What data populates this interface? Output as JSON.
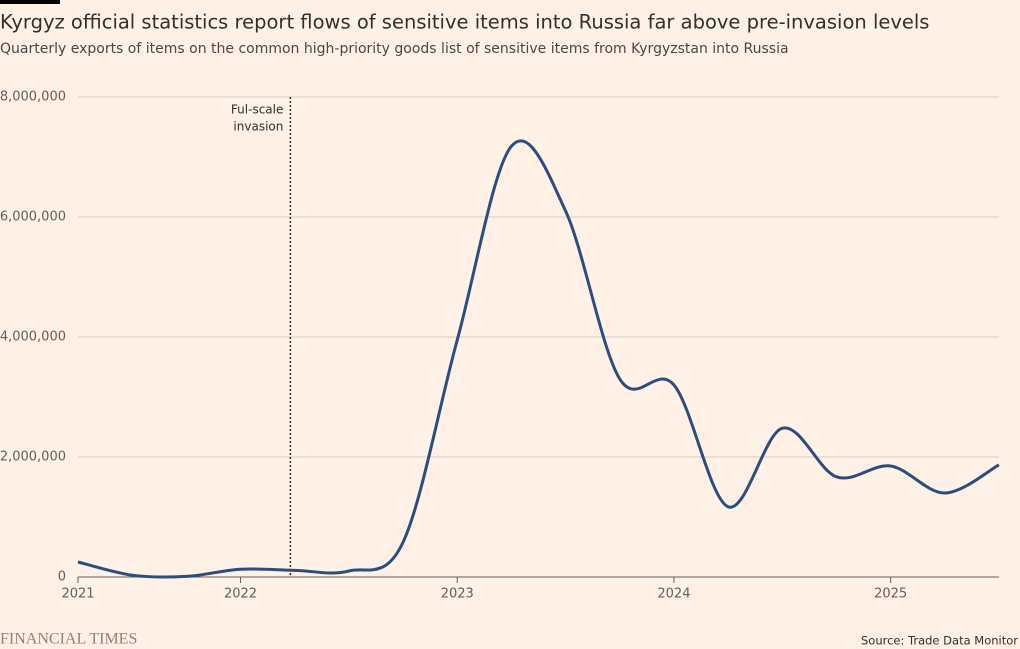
{
  "chart_data": {
    "type": "line",
    "title": "Kyrgyz official statistics report flows of sensitive items into Russia far above pre-invasion levels",
    "subtitle": "Quarterly exports of items on the common high-priority goods list of sensitive items from Kyrgyzstan into Russia",
    "x": [
      2021.25,
      2021.5,
      2021.75,
      2022.0,
      2022.25,
      2022.5,
      2022.75,
      2023.0,
      2023.25,
      2023.5,
      2023.75,
      2024.0,
      2024.25,
      2024.5,
      2024.75,
      2025.0,
      2025.25,
      2025.5
    ],
    "series": [
      {
        "name": "Exports",
        "color": "#2a4f7e",
        "values": [
          250000,
          30000,
          10000,
          130000,
          110000,
          100000,
          580000,
          3950000,
          7180000,
          6100000,
          3300000,
          3200000,
          1170000,
          2480000,
          1670000,
          1850000,
          1400000,
          1870000
        ]
      }
    ],
    "xlim": [
      2021.25,
      2025.5
    ],
    "xticks": [
      {
        "value": 2021.25,
        "label": "2021"
      },
      2022,
      2023,
      2024,
      2025
    ],
    "ylim": [
      0,
      8000000
    ],
    "yticks": [
      0,
      {
        "value": 2000000,
        "label": "2,000,000"
      },
      {
        "value": 4000000,
        "label": "4,000,000"
      },
      {
        "value": 6000000,
        "label": "6,000,000"
      },
      {
        "value": 8000000,
        "label": "8,000,000"
      }
    ],
    "grid": true,
    "annotation": {
      "x": 2022.23,
      "lines": [
        "Ful-scale",
        "invasion"
      ]
    },
    "source": "Source: Trade Data Monitor",
    "brand": "FINANCIAL TIMES"
  }
}
